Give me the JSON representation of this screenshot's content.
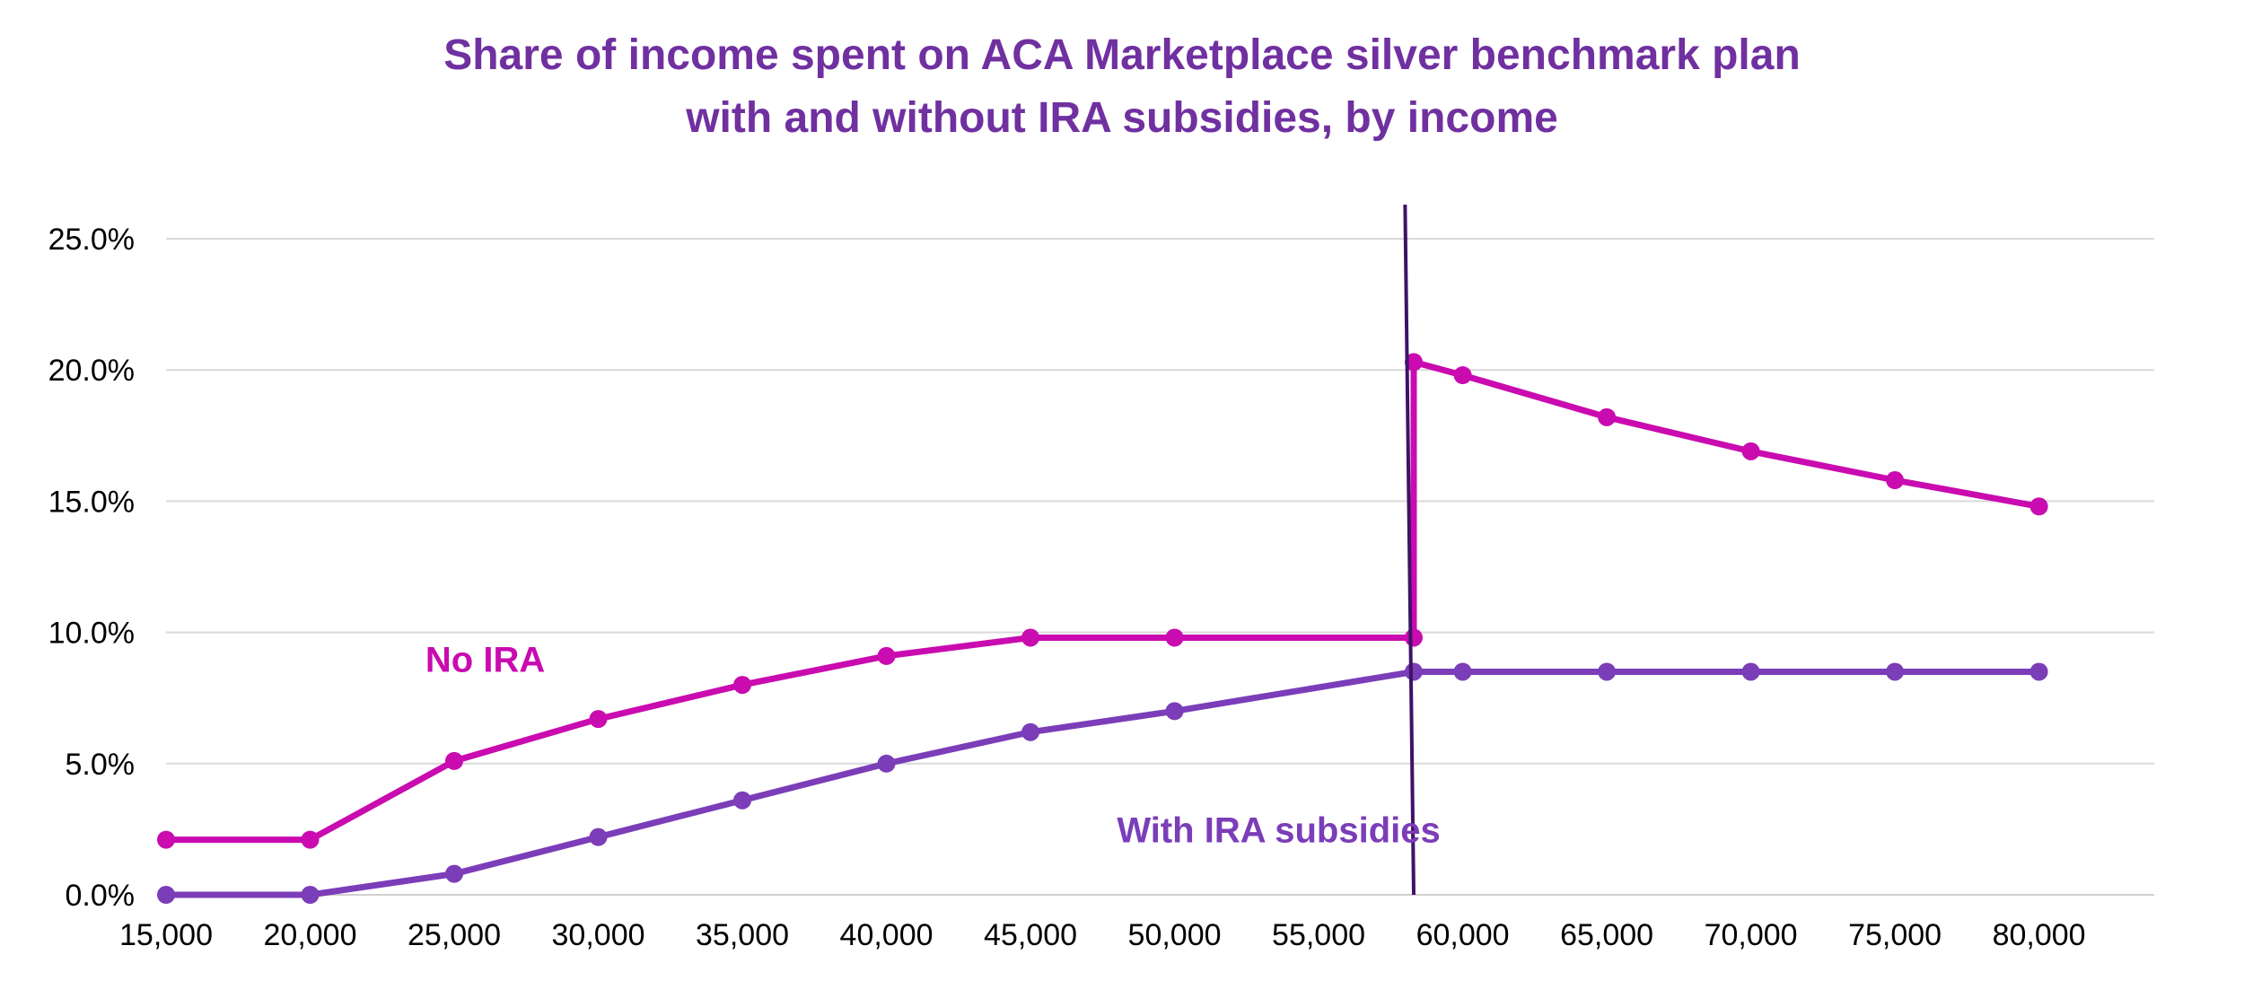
{
  "chart_data": {
    "type": "line",
    "title_lines": [
      "Share of income spent on ACA Marketplace silver benchmark plan",
      "with and without IRA subsidies, by income"
    ],
    "xlabel": "",
    "ylabel": "",
    "xlim": [
      15000,
      84000
    ],
    "ylim": [
      0,
      26.3
    ],
    "x_ticks": [
      15000,
      20000,
      25000,
      30000,
      35000,
      40000,
      45000,
      50000,
      55000,
      60000,
      65000,
      70000,
      75000,
      80000
    ],
    "x_tick_labels": [
      "15,000",
      "20,000",
      "25,000",
      "30,000",
      "35,000",
      "40,000",
      "45,000",
      "50,000",
      "55,000",
      "60,000",
      "65,000",
      "70,000",
      "75,000",
      "80,000"
    ],
    "y_ticks": [
      0,
      5,
      10,
      15,
      20,
      25
    ],
    "y_tick_labels": [
      "0.0%",
      "5.0%",
      "10.0%",
      "15.0%",
      "20.0%",
      "25.0%"
    ],
    "grid": true,
    "series": [
      {
        "name": "No IRA",
        "color": "#C90BB0",
        "points": [
          [
            15000,
            2.1
          ],
          [
            20000,
            2.1
          ],
          [
            25000,
            5.1
          ],
          [
            30000,
            6.7
          ],
          [
            35000,
            8.0
          ],
          [
            40000,
            9.1
          ],
          [
            45000,
            9.8
          ],
          [
            50000,
            9.8
          ],
          [
            58300,
            9.8
          ],
          [
            58300,
            20.3
          ],
          [
            60000,
            19.8
          ],
          [
            65000,
            18.2
          ],
          [
            70000,
            16.9
          ],
          [
            75000,
            15.8
          ],
          [
            80000,
            14.8
          ]
        ]
      },
      {
        "name": "With IRA subsidies",
        "color": "#7B3DB8",
        "points": [
          [
            15000,
            0.0
          ],
          [
            20000,
            0.0
          ],
          [
            25000,
            0.8
          ],
          [
            30000,
            2.2
          ],
          [
            35000,
            3.6
          ],
          [
            40000,
            5.0
          ],
          [
            45000,
            6.2
          ],
          [
            50000,
            7.0
          ],
          [
            58300,
            8.5
          ],
          [
            60000,
            8.5
          ],
          [
            65000,
            8.5
          ],
          [
            70000,
            8.5
          ],
          [
            75000,
            8.5
          ],
          [
            80000,
            8.5
          ]
        ]
      }
    ],
    "annotations": [
      {
        "text": "No IRA",
        "x": 24000,
        "y": 8.5,
        "color": "#C90BB0"
      },
      {
        "text": "With IRA subsidies",
        "x": 48000,
        "y": 2.0,
        "color": "#7B3DB8"
      }
    ],
    "reference_line": {
      "description": "vertical marker near 400% FPL cliff",
      "x_top": 58000,
      "y_top": 26.3,
      "x_bottom": 58300,
      "y_bottom": 0,
      "color": "#3D1366"
    },
    "axis_color": "#D0D0D0",
    "grid_color": "#D9D9D9",
    "tick_label_color": "#000000"
  }
}
